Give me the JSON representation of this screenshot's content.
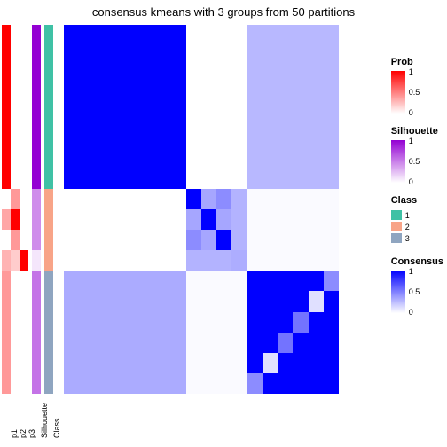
{
  "title": "consensus kmeans with 3 groups from 50 partitions",
  "layout": {
    "n_rows": 18,
    "group_sizes": [
      8,
      4,
      6
    ],
    "ann_col_width": 10,
    "gap_after_p": true,
    "gap_after_class": true
  },
  "colors": {
    "prob_low": "#ffffff",
    "prob_high": "#ff0000",
    "prob_mid": "#ff9b81",
    "sil_low": "#ffffff",
    "sil_high": "#9400d3",
    "sil_mid": "#d5a6e8",
    "class1": "#3fc1a5",
    "class2": "#f8a488",
    "class3": "#8fa5c0",
    "cons_low": "#ffffff",
    "cons_high": "#0000ff",
    "cons_mid": "#a796e8",
    "cons_mid2": "#8b7de0",
    "cons_light": "#c4baf0",
    "cons_faint": "#e8e4f9"
  },
  "annotations": {
    "columns": [
      "p1",
      "p2",
      "p3",
      "Silhouette",
      "Class"
    ],
    "p1": [
      1,
      1,
      1,
      1,
      1,
      1,
      1,
      1,
      0,
      0.35,
      0,
      0.3,
      0.4,
      0.4,
      0.4,
      0.4,
      0.4,
      0.4
    ],
    "p2": [
      0,
      0,
      0,
      0,
      0,
      0,
      0,
      0,
      0.4,
      1,
      0.4,
      0.2,
      0,
      0,
      0,
      0,
      0,
      0
    ],
    "p3": [
      0,
      0,
      0,
      0,
      0,
      0,
      0,
      0,
      0,
      0,
      0,
      1,
      0,
      0,
      0,
      0,
      0,
      0
    ],
    "sil": [
      1,
      1,
      1,
      1,
      1,
      1,
      1,
      1,
      0.45,
      0.45,
      0.45,
      0.1,
      0.55,
      0.55,
      0.55,
      0.55,
      0.55,
      0.55
    ],
    "cls": [
      1,
      1,
      1,
      1,
      1,
      1,
      1,
      1,
      2,
      2,
      2,
      2,
      3,
      3,
      3,
      3,
      3,
      3
    ]
  },
  "heatmap": {
    "blocks": [
      {
        "r0": 0,
        "r1": 8,
        "c0": 0,
        "c1": 8,
        "v": 1.0
      },
      {
        "r0": 0,
        "r1": 8,
        "c0": 8,
        "c1": 12,
        "v": 0.0
      },
      {
        "r0": 0,
        "r1": 8,
        "c0": 12,
        "c1": 18,
        "v": 0.28
      },
      {
        "r0": 8,
        "r1": 12,
        "c0": 0,
        "c1": 8,
        "v": 0.0
      },
      {
        "r0": 12,
        "r1": 18,
        "c0": 0,
        "c1": 8,
        "v": 0.33
      },
      {
        "r0": 12,
        "r1": 18,
        "c0": 8,
        "c1": 12,
        "v": 0.02
      },
      {
        "r0": 8,
        "r1": 12,
        "c0": 12,
        "c1": 18,
        "v": 0.02
      },
      {
        "r0": 12,
        "r1": 18,
        "c0": 12,
        "c1": 18,
        "v": 1.0
      }
    ],
    "mid_block": {
      "r0": 8,
      "r1": 12,
      "c0": 8,
      "c1": 12,
      "cells": [
        [
          1.0,
          0.35,
          0.45,
          0.3
        ],
        [
          0.35,
          1.0,
          0.35,
          0.3
        ],
        [
          0.45,
          0.35,
          1.0,
          0.3
        ],
        [
          0.3,
          0.3,
          0.3,
          0.32
        ]
      ]
    },
    "overrides": [
      {
        "r": 15,
        "c": 14,
        "v": 0.55
      },
      {
        "r": 14,
        "c": 15,
        "v": 0.55
      },
      {
        "r": 17,
        "c": 12,
        "v": 0.45
      },
      {
        "r": 12,
        "c": 17,
        "v": 0.45
      },
      {
        "r": 16,
        "c": 13,
        "v": 0.12
      },
      {
        "r": 13,
        "c": 16,
        "v": 0.12
      }
    ]
  },
  "legends": {
    "prob": {
      "name": "Prob",
      "ticks": [
        "1",
        "0.5",
        "0"
      ]
    },
    "silhouette": {
      "name": "Silhouette",
      "ticks": [
        "1",
        "0.5",
        "0"
      ]
    },
    "class": {
      "name": "Class",
      "items": [
        "1",
        "2",
        "3"
      ]
    },
    "consensus": {
      "name": "Consensus",
      "ticks": [
        "1",
        "0.5",
        "0"
      ]
    }
  }
}
